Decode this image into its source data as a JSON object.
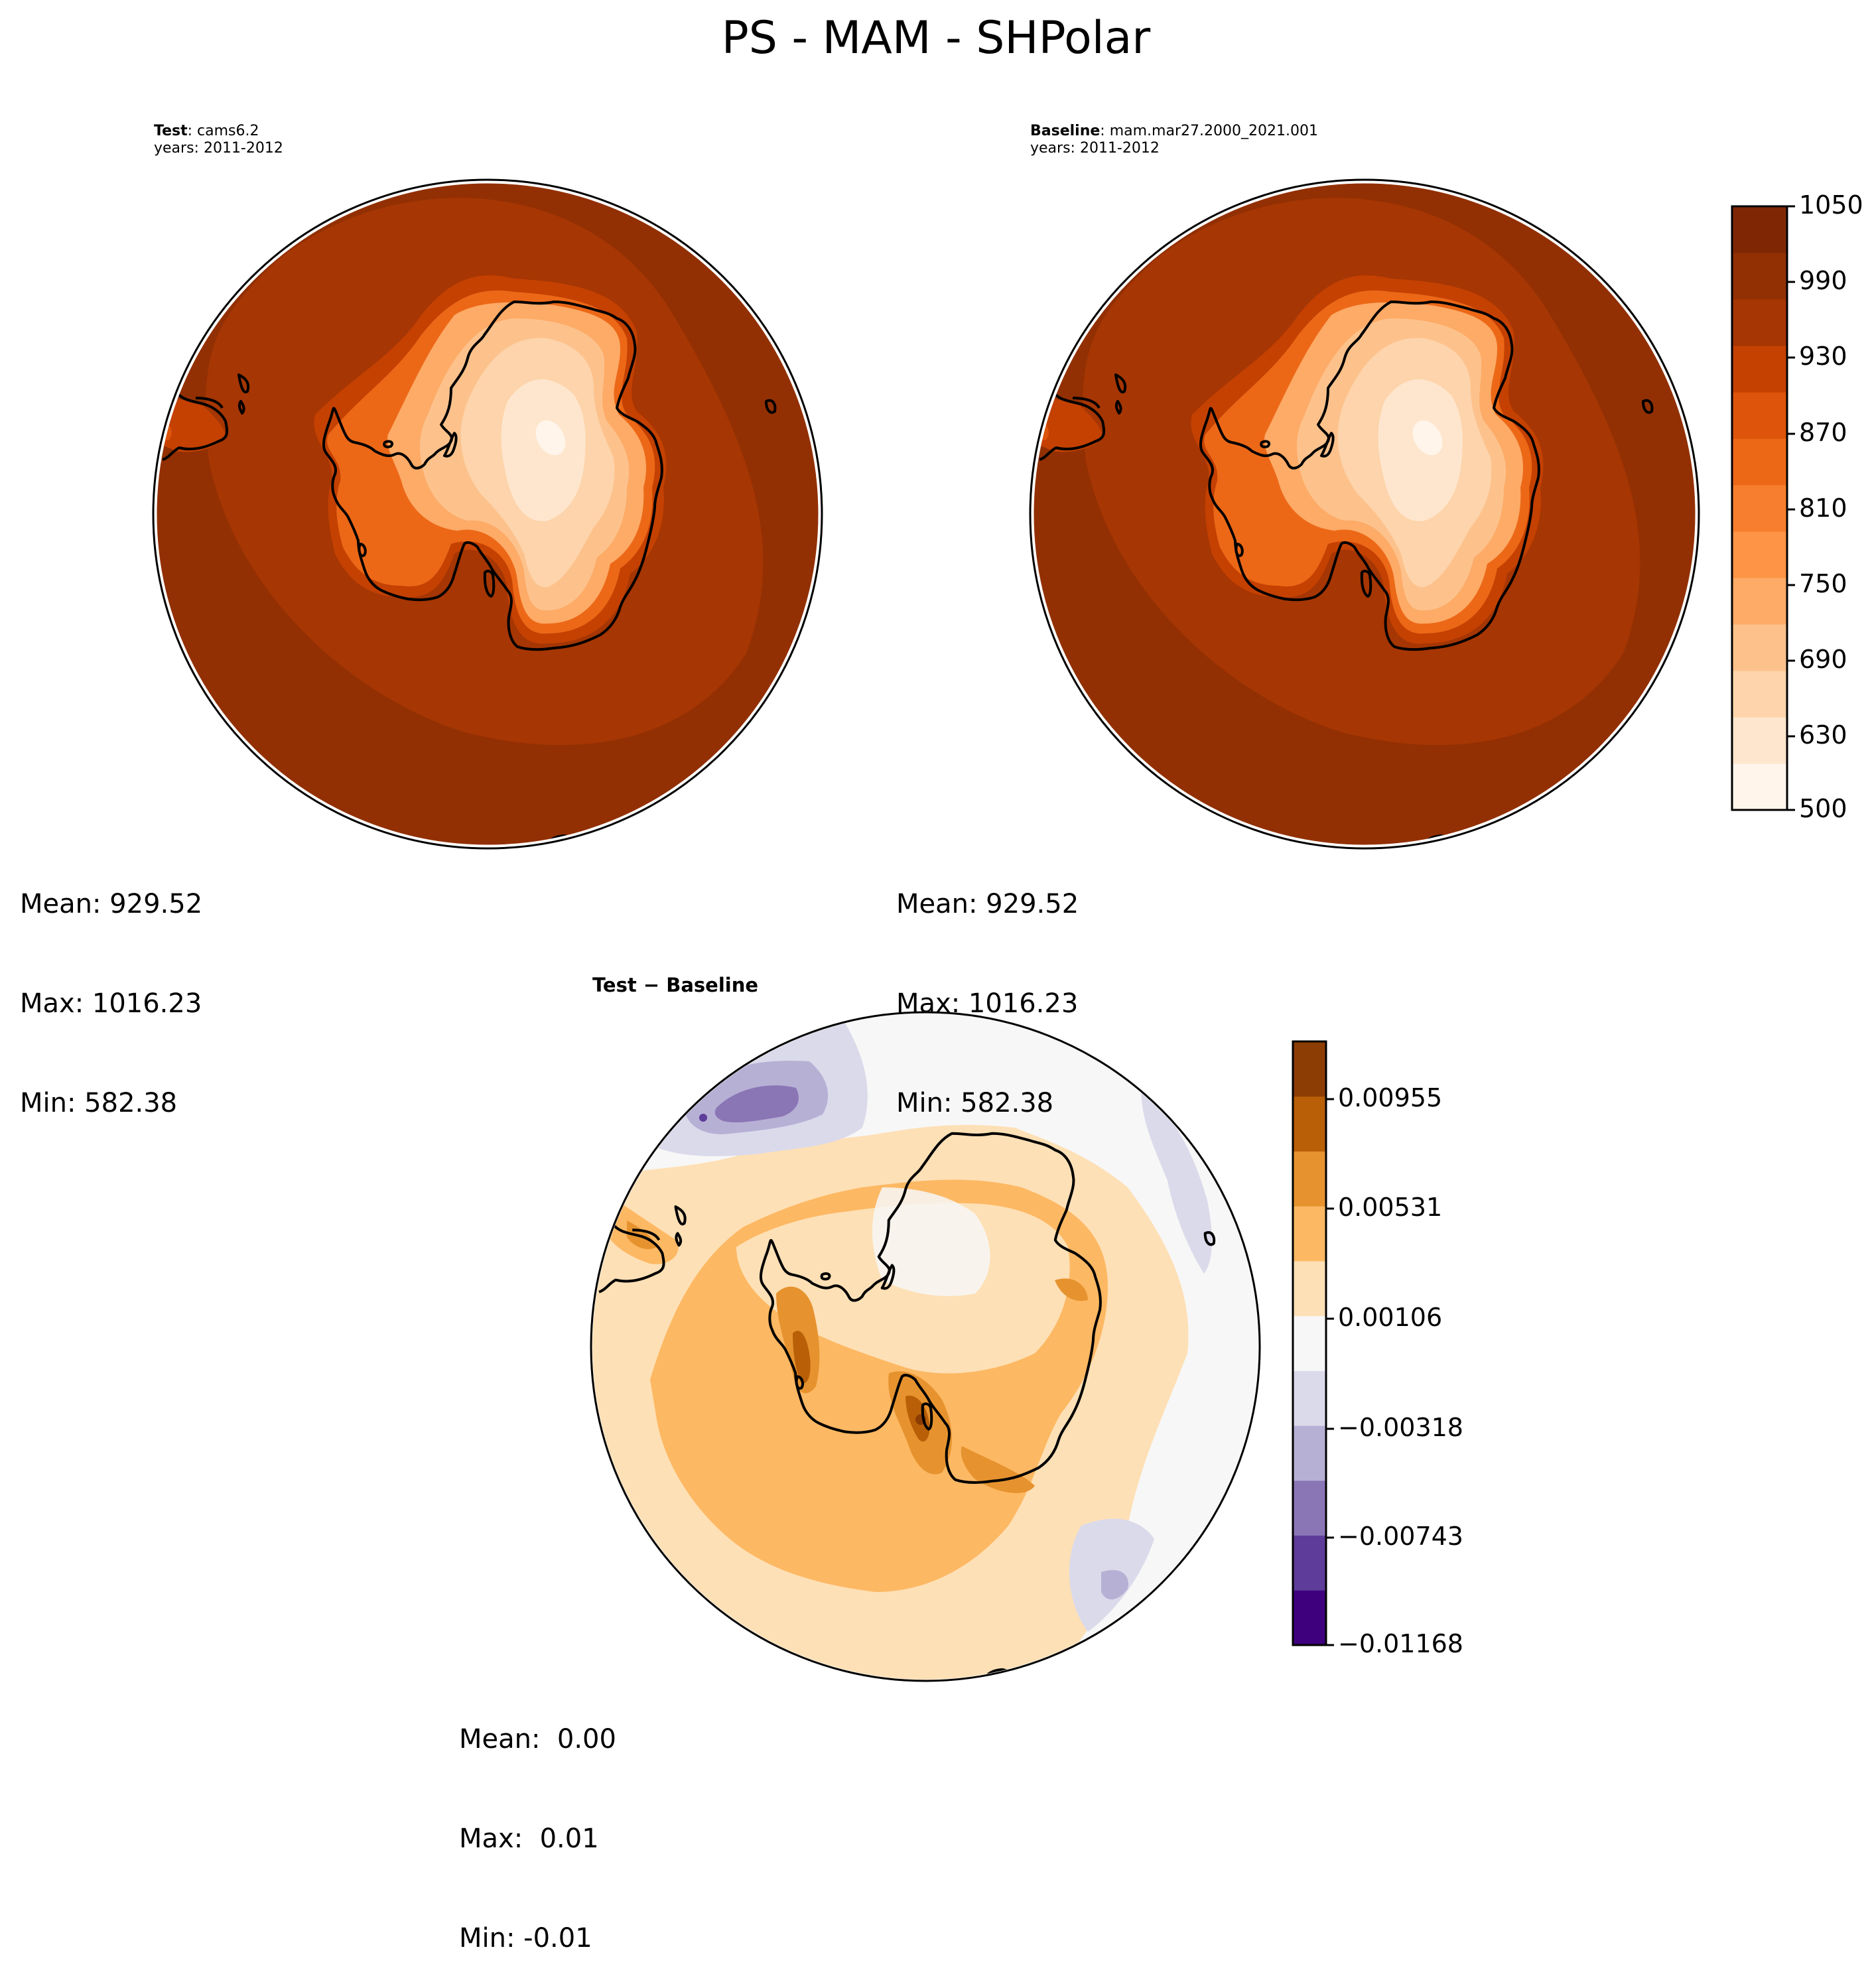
{
  "figure": {
    "title": "PS - MAM - SHPolar"
  },
  "chart_data": [
    {
      "type": "contour-map",
      "panel": "test",
      "subtitle_bold": "Test",
      "subtitle_rest": ": cams6.2",
      "years": "years: 2011-2012",
      "stats": {
        "mean": "Mean: 929.52",
        "max": "Max: 1016.23",
        "min": "Min: 582.38"
      }
    },
    {
      "type": "contour-map",
      "panel": "baseline",
      "subtitle_bold": "Baseline",
      "subtitle_rest": ": mam.mar27.2000_2021.001",
      "years": "years: 2011-2012",
      "stats": {
        "mean": "Mean: 929.52",
        "max": "Max: 1016.23",
        "min": "Min: 582.38"
      },
      "colorbar": {
        "range": [
          500,
          1050
        ],
        "ticks": [
          "1050",
          "990",
          "930",
          "870",
          "810",
          "750",
          "690",
          "630",
          "500"
        ],
        "colors": [
          "#fff5eb",
          "#fee6ce",
          "#fdd4ab",
          "#fdc28c",
          "#fdab67",
          "#fd9446",
          "#f77e2e",
          "#ec6817",
          "#dd540a",
          "#c44102",
          "#a63603",
          "#923003",
          "#7f2704"
        ]
      }
    },
    {
      "type": "contour-map",
      "panel": "difference",
      "subtitle": "Test − Baseline",
      "stats": {
        "mean": "Mean:  0.00",
        "max": "Max:  0.01",
        "min": "Min: -0.01"
      },
      "colorbar": {
        "range": [
          -0.01168,
          0.01168
        ],
        "ticks": [
          "0.00955",
          "0.00531",
          "0.00106",
          "−0.00318",
          "−0.00743",
          "−0.01168"
        ],
        "colors": [
          "#3f007d",
          "#5e3c99",
          "#8a76b5",
          "#b7b0d5",
          "#dadaeb",
          "#f7f7f7",
          "#fee0b6",
          "#fdb863",
          "#e6932f",
          "#b85f08",
          "#8c3d04"
        ]
      }
    }
  ]
}
